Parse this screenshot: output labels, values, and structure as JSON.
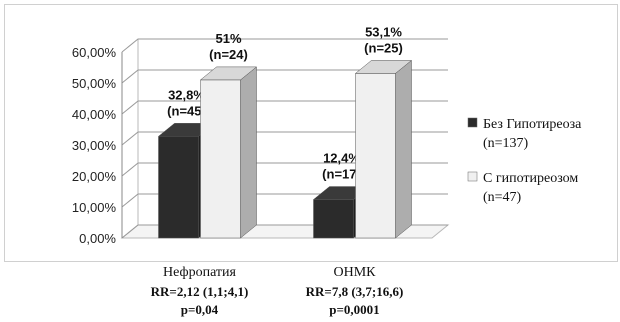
{
  "chart_data": {
    "type": "bar",
    "style": "3d-clustered-column",
    "categories": [
      "Нефропатия",
      "ОНМК"
    ],
    "category_stats": [
      [
        "RR=2,12 (1,1;4,1)",
        "p=0,04"
      ],
      [
        "RR=7,8 (3,7;16,6)",
        "p=0,0001"
      ]
    ],
    "series": [
      {
        "name": "Без Гипотиреоза (n=137)",
        "legend_lines": [
          "Без Гипотиреоза",
          "(n=137)"
        ],
        "color": "#2b2b2b",
        "values": [
          32.8,
          12.4
        ],
        "labels": [
          [
            "32,8%",
            "(n=45)"
          ],
          [
            "12,4%",
            "(n=17)"
          ]
        ]
      },
      {
        "name": "С гипотиреозом (n=47)",
        "legend_lines": [
          "С гипотиреозом",
          "(n=47)"
        ],
        "color": "#f0f0f0",
        "values": [
          51,
          53.1
        ],
        "labels": [
          [
            "51%",
            "(n=24)"
          ],
          [
            "53,1%",
            "(n=25)"
          ]
        ]
      }
    ],
    "yticks": [
      "0,00%",
      "10,00%",
      "20,00%",
      "30,00%",
      "40,00%",
      "50,00%",
      "60,00%"
    ],
    "ylim": [
      0,
      60
    ],
    "grid": true,
    "legend": "right"
  }
}
